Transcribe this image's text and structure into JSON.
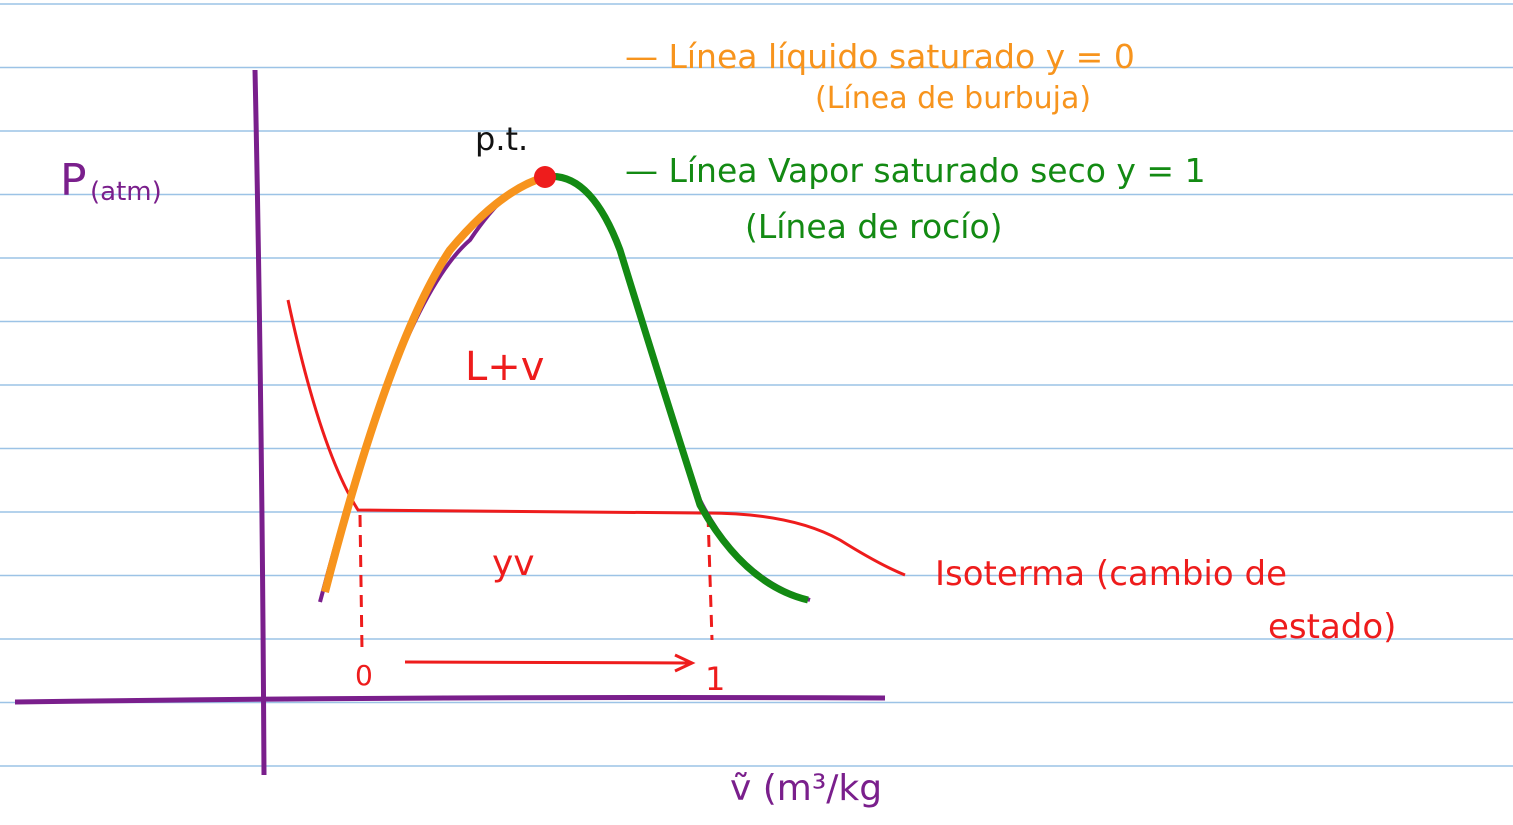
{
  "axes": {
    "y_label": "P",
    "y_unit": "(atm)",
    "x_label": "ṽ (m³/kg"
  },
  "labels": {
    "critical_point": "p.t.",
    "two_phase": "L+v",
    "quality": "yv",
    "quality_start": "0",
    "quality_end": "1"
  },
  "legend": {
    "saturated_liquid": "— Línea líquido saturado  y  = 0",
    "saturated_liquid_note": "(Línea de burbuja)",
    "saturated_vapor": "— Línea Vapor saturado seco  y  = 1",
    "saturated_vapor_note": "(Línea de rocío)",
    "isotherm": "Isoterma (cambio de",
    "isotherm_cont": "estado)"
  }
}
